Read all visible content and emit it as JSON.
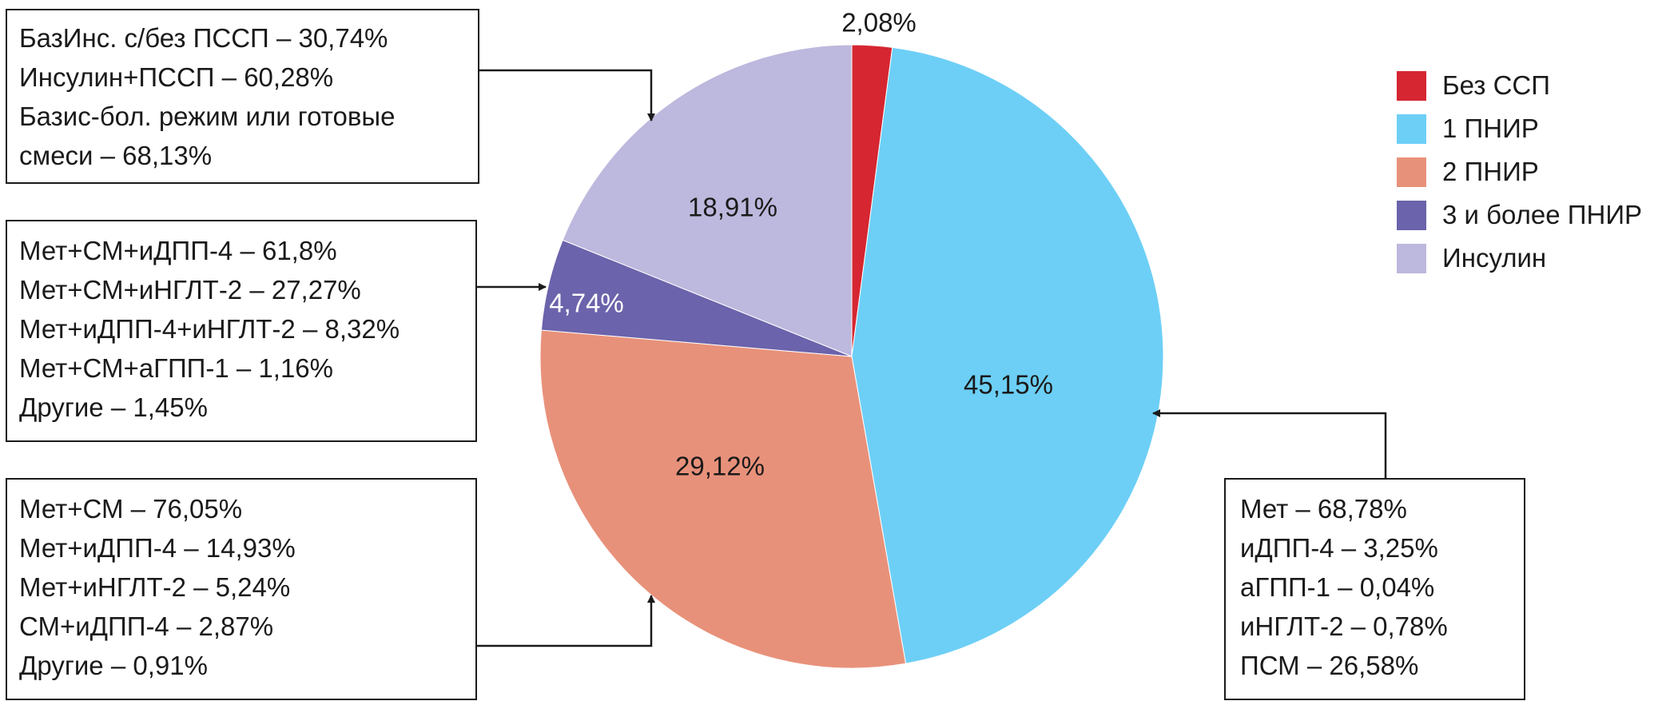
{
  "colors": {
    "bez_ssp": "#d52631",
    "pnir1": "#6dcff6",
    "pnir2": "#e8917a",
    "pnir3": "#6b63ab",
    "insulin": "#bdb8dd",
    "outline": "#1a1a1a"
  },
  "chart_data": {
    "type": "pie",
    "categories": [
      "Без ССП",
      "1 ПНИР",
      "2 ПНИР",
      "3 и более ПНИР",
      "Инсулин"
    ],
    "values": [
      2.08,
      45.15,
      29.12,
      4.74,
      18.91
    ],
    "value_labels": [
      "2,08%",
      "45,15%",
      "29,12%",
      "4,74%",
      "18,91%"
    ],
    "legend_position": "top-right",
    "start": "top, clockwise"
  },
  "legend": {
    "items": [
      {
        "label": "Без ССП",
        "color": "#d52631"
      },
      {
        "label": "1 ПНИР",
        "color": "#6dcff6"
      },
      {
        "label": "2 ПНИР",
        "color": "#e8917a"
      },
      {
        "label": "3 и более ПНИР",
        "color": "#6b63ab"
      },
      {
        "label": "Инсулин",
        "color": "#bdb8dd"
      }
    ]
  },
  "annotations": {
    "insulin": [
      "БазИнс. с/без ПССП – 30,74%",
      "Инсулин+ПССП – 60,28%",
      "Базис-бол. режим или готовые",
      "смеси – 68,13%"
    ],
    "pnir3": [
      "Мет+СМ+иДПП-4 – 61,8%",
      "Мет+СМ+иНГЛТ-2 – 27,27%",
      "Мет+иДПП-4+иНГЛТ-2 – 8,32%",
      "Мет+СМ+аГПП-1 – 1,16%",
      "Другие – 1,45%"
    ],
    "pnir2": [
      "Мет+СМ – 76,05%",
      "Мет+иДПП-4 – 14,93%",
      "Мет+иНГЛТ-2 – 5,24%",
      "СМ+иДПП-4 – 2,87%",
      "Другие – 0,91%"
    ],
    "pnir1": [
      "Мет – 68,78%",
      "иДПП-4 – 3,25%",
      "аГПП-1 – 0,04%",
      "иНГЛТ-2 – 0,78%",
      "ПСМ – 26,58%"
    ]
  }
}
